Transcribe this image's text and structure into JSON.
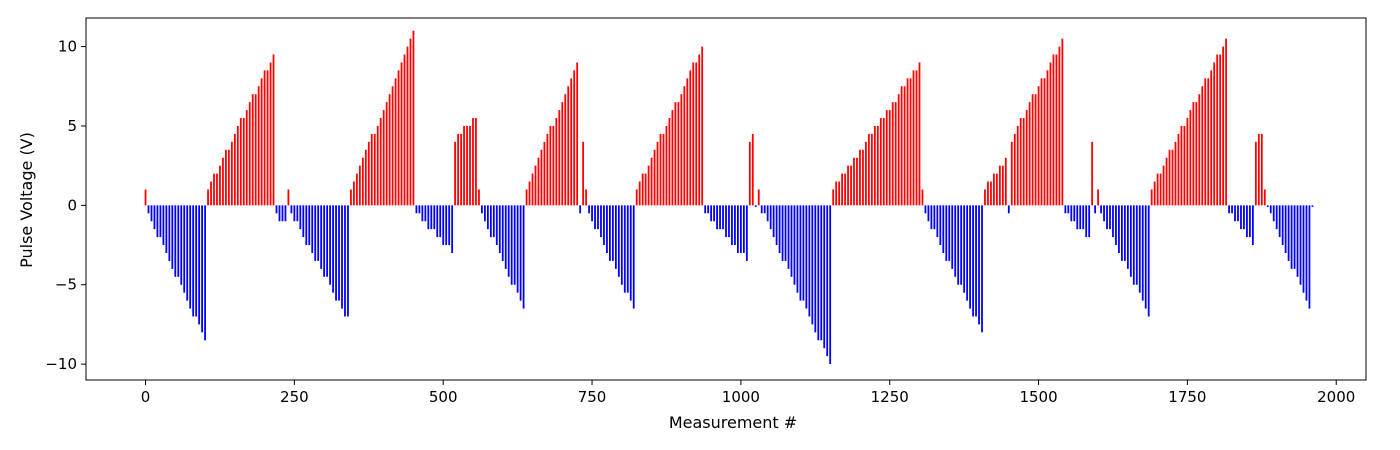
{
  "chart_data": {
    "type": "bar",
    "title": "",
    "xlabel": "Measurement #",
    "ylabel": "Pulse Voltage (V)",
    "xlim": [
      -100,
      2050
    ],
    "ylim": [
      -11,
      11.8
    ],
    "xticks": [
      0,
      250,
      500,
      750,
      1000,
      1250,
      1500,
      1750,
      2000
    ],
    "yticks": [
      -10,
      -5,
      0,
      5,
      10
    ],
    "grid": false,
    "legend": "none",
    "bar_spacing": 5,
    "bar_width": 3,
    "colors": {
      "positive": "#ff0000",
      "negative": "#0000ff"
    },
    "segments": [
      {
        "x_start": 0,
        "x_end": 0,
        "values": [
          1
        ]
      },
      {
        "x_start": 5,
        "x_end": 100,
        "from": -0.5,
        "to": -8.5
      },
      {
        "x_start": 105,
        "x_end": 215,
        "from": 1.0,
        "to": 9.5
      },
      {
        "x_start": 220,
        "x_end": 235,
        "from": -0.6,
        "to": -1.1
      },
      {
        "x_start": 240,
        "x_end": 240,
        "values": [
          1
        ]
      },
      {
        "x_start": 245,
        "x_end": 340,
        "from": -0.5,
        "to": -7.2
      },
      {
        "x_start": 345,
        "x_end": 450,
        "from": 1.0,
        "to": 10.8
      },
      {
        "x_start": 455,
        "x_end": 515,
        "from": -0.5,
        "to": -2.9
      },
      {
        "x_start": 520,
        "x_end": 555,
        "from": 4.2,
        "to": 5.6
      },
      {
        "x_start": 560,
        "x_end": 560,
        "values": [
          1
        ]
      },
      {
        "x_start": 565,
        "x_end": 635,
        "from": -0.5,
        "to": -6.5
      },
      {
        "x_start": 640,
        "x_end": 725,
        "from": 1.0,
        "to": 9.0
      },
      {
        "x_start": 730,
        "x_end": 730,
        "values": [
          -0.5
        ]
      },
      {
        "x_start": 735,
        "x_end": 735,
        "values": [
          4.2
        ]
      },
      {
        "x_start": 740,
        "x_end": 740,
        "values": [
          1
        ]
      },
      {
        "x_start": 745,
        "x_end": 820,
        "from": -0.5,
        "to": -6.5
      },
      {
        "x_start": 825,
        "x_end": 935,
        "from": 1.0,
        "to": 10.0
      },
      {
        "x_start": 940,
        "x_end": 1010,
        "from": -0.5,
        "to": -3.4
      },
      {
        "x_start": 1015,
        "x_end": 1020,
        "from": 4.2,
        "to": 4.4
      },
      {
        "x_start": 1025,
        "x_end": 1025,
        "values": [
          -0.2
        ]
      },
      {
        "x_start": 1030,
        "x_end": 1030,
        "values": [
          1
        ]
      },
      {
        "x_start": 1035,
        "x_end": 1150,
        "from": -0.3,
        "to": -10.0
      },
      {
        "x_start": 1155,
        "x_end": 1300,
        "from": 1.0,
        "to": 8.9
      },
      {
        "x_start": 1305,
        "x_end": 1305,
        "values": [
          1
        ]
      },
      {
        "x_start": 1310,
        "x_end": 1405,
        "from": -0.5,
        "to": -8.0
      },
      {
        "x_start": 1410,
        "x_end": 1445,
        "from": 1.0,
        "to": 3.0
      },
      {
        "x_start": 1450,
        "x_end": 1450,
        "values": [
          -0.3
        ]
      },
      {
        "x_start": 1455,
        "x_end": 1540,
        "from": 4.2,
        "to": 10.4
      },
      {
        "x_start": 1545,
        "x_end": 1585,
        "from": -0.5,
        "to": -2.1
      },
      {
        "x_start": 1590,
        "x_end": 1590,
        "values": [
          4.2
        ]
      },
      {
        "x_start": 1595,
        "x_end": 1595,
        "values": [
          -0.3
        ]
      },
      {
        "x_start": 1600,
        "x_end": 1600,
        "values": [
          1
        ]
      },
      {
        "x_start": 1605,
        "x_end": 1685,
        "from": -0.5,
        "to": -6.8
      },
      {
        "x_start": 1690,
        "x_end": 1815,
        "from": 1.0,
        "to": 10.5
      },
      {
        "x_start": 1820,
        "x_end": 1860,
        "from": -0.5,
        "to": -2.3
      },
      {
        "x_start": 1865,
        "x_end": 1875,
        "from": 4.2,
        "to": 4.4
      },
      {
        "x_start": 1880,
        "x_end": 1880,
        "values": [
          1
        ]
      },
      {
        "x_start": 1885,
        "x_end": 1955,
        "from": -0.2,
        "to": -6.5
      },
      {
        "x_start": 1960,
        "x_end": 1960,
        "values": [
          -0.1
        ]
      }
    ]
  }
}
